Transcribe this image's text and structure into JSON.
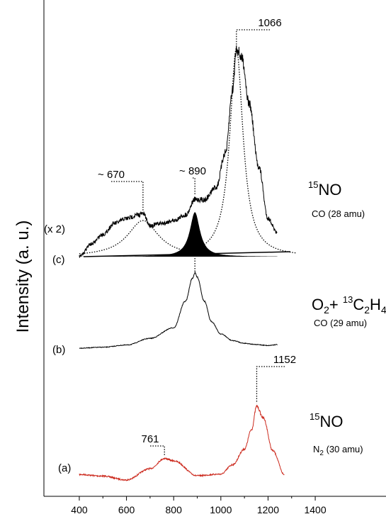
{
  "chart_data": {
    "type": "line",
    "title": "",
    "xlabel": "",
    "ylabel": "Intensity (a. u.)",
    "xlim": [
      250,
      1700
    ],
    "xticks": [
      400,
      600,
      800,
      1000,
      1200,
      1400
    ],
    "xtick_labels": [
      "400",
      "600",
      "800",
      "1000",
      "1200",
      "1400"
    ],
    "grid": false,
    "series": [
      {
        "id": "a",
        "label": "(a)",
        "species_prefix": "15",
        "species": "NO",
        "detail_main": "N",
        "detail_sub": "2",
        "detail_rest": " (30 amu)",
        "color": "#cc2a1e",
        "x": [
          400,
          500,
          600,
          700,
          761,
          800,
          900,
          1000,
          1050,
          1100,
          1130,
          1152,
          1180,
          1220,
          1270
        ],
        "y": [
          0.25,
          0.05,
          -0.45,
          1.0,
          2.3,
          2.0,
          0.1,
          0.3,
          1.5,
          3.5,
          6.0,
          9.0,
          7.5,
          3.3,
          0.2
        ],
        "peaks": [
          {
            "x": 761,
            "label": "761"
          },
          {
            "x": 1152,
            "label": "1152"
          }
        ]
      },
      {
        "id": "b",
        "label": "(b)",
        "species_line": [
          "O",
          "2",
          "+ ",
          "13",
          "C",
          "2",
          "H",
          "4"
        ],
        "detail": "CO (29 amu)",
        "color": "#000000",
        "x": [
          400,
          500,
          600,
          700,
          800,
          850,
          880,
          890,
          900,
          930,
          960,
          1000,
          1050,
          1100,
          1150,
          1200,
          1240
        ],
        "y": [
          0.0,
          0.1,
          0.35,
          1.1,
          2.3,
          5.3,
          7.9,
          8.5,
          8.0,
          5.3,
          3.0,
          1.6,
          0.85,
          0.55,
          0.4,
          0.3,
          0.4
        ],
        "peaks": [
          {
            "x": 890,
            "label": ""
          }
        ]
      },
      {
        "id": "c",
        "label": "(c)",
        "scale_label": "(x 2)",
        "species_prefix": "15",
        "species": "NO",
        "detail": "CO (28 amu)",
        "color": "#000000",
        "x": [
          400,
          450,
          500,
          550,
          600,
          650,
          670,
          700,
          750,
          800,
          850,
          890,
          930,
          980,
          1020,
          1050,
          1066,
          1090,
          1120,
          1160,
          1200,
          1240
        ],
        "y": [
          0.0,
          1.8,
          3.2,
          4.8,
          5.5,
          6.0,
          6.2,
          4.5,
          4.8,
          5.2,
          6.0,
          8.2,
          8.2,
          10.0,
          15.0,
          24.0,
          30.0,
          28.5,
          22.0,
          13.0,
          5.5,
          3.3
        ],
        "peaks": [
          {
            "x": 670,
            "label": "~ 670"
          },
          {
            "x": 890,
            "label": "~ 890"
          },
          {
            "x": 1066,
            "label": "1066"
          }
        ],
        "fit_components": [
          {
            "center": 670,
            "width": 160,
            "amplitude": 5.2,
            "style": "dotted"
          },
          {
            "center": 890,
            "width": 52,
            "amplitude": 6.4,
            "style": "filled"
          },
          {
            "center": 1066,
            "width": 68,
            "amplitude": 30.0,
            "style": "dotted"
          }
        ]
      }
    ]
  }
}
